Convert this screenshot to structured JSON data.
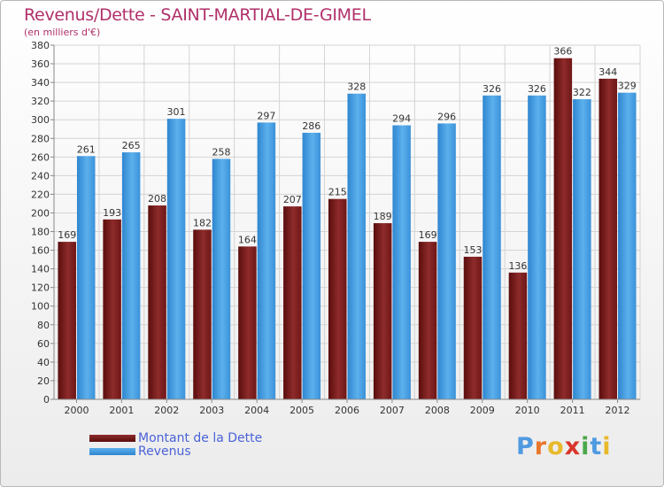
{
  "title": "Revenus/Dette - SAINT-MARTIAL-DE-GIMEL",
  "subtitle": "(en milliers d'€)",
  "logo": {
    "letters": [
      "P",
      "r",
      "o",
      "x",
      "i",
      "t",
      "i"
    ],
    "colors": [
      "#4f9ae0",
      "#e8762b",
      "#e8b92b",
      "#d9372b",
      "#4aa84a",
      "#4f9ae0",
      "#e8b92b"
    ]
  },
  "chart_data": {
    "type": "bar",
    "title": "Revenus/Dette - SAINT-MARTIAL-DE-GIMEL",
    "ylabel": "(en milliers d'€)",
    "categories": [
      "2000",
      "2001",
      "2002",
      "2003",
      "2004",
      "2005",
      "2006",
      "2007",
      "2008",
      "2009",
      "2010",
      "2011",
      "2012"
    ],
    "series": [
      {
        "name": "Montant de la Dette",
        "color": "#7a1a1a",
        "values": [
          169,
          193,
          208,
          182,
          164,
          207,
          215,
          189,
          169,
          153,
          136,
          366,
          344
        ]
      },
      {
        "name": "Revenus",
        "color": "#3a9ae0",
        "values": [
          261,
          265,
          301,
          258,
          297,
          286,
          328,
          294,
          296,
          326,
          326,
          322,
          329
        ]
      }
    ],
    "ylim": [
      0,
      380
    ],
    "ytick_step": 20,
    "grid": true,
    "legend": "bottom-left"
  }
}
